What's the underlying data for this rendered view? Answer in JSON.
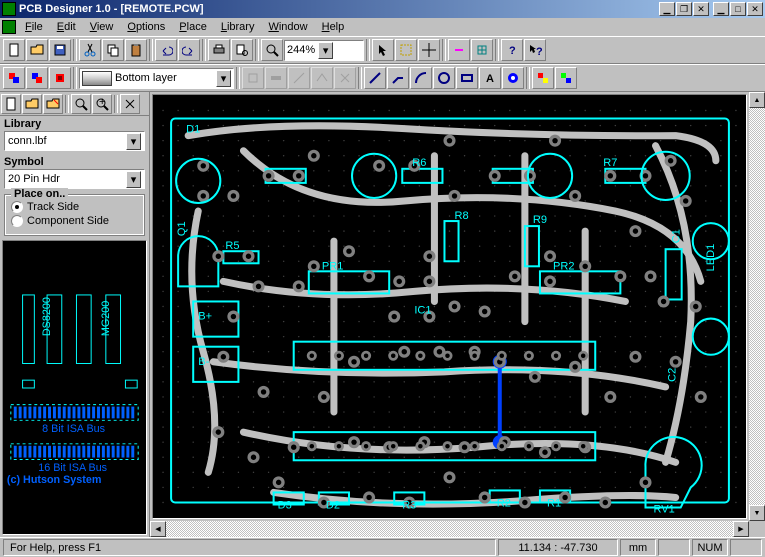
{
  "window": {
    "title": "PCB Designer 1.0 - [REMOTE.PCW]"
  },
  "menus": [
    {
      "label": "File",
      "u": 0
    },
    {
      "label": "Edit",
      "u": 0
    },
    {
      "label": "View",
      "u": 0
    },
    {
      "label": "Options",
      "u": 0
    },
    {
      "label": "Place",
      "u": 0
    },
    {
      "label": "Library",
      "u": 0
    },
    {
      "label": "Window",
      "u": 0
    },
    {
      "label": "Help",
      "u": 0
    }
  ],
  "zoom": "244%",
  "layer_label": "Bottom layer",
  "sidebar": {
    "library_label": "Library",
    "library_value": "conn.lbf",
    "symbol_label": "Symbol",
    "symbol_value": "20 Pin Hdr",
    "placeon_label": "Place on..",
    "radio_track": "Track Side",
    "radio_component": "Component Side",
    "radio_selected": "track"
  },
  "preview": {
    "bus8_label": "8 Bit ISA Bus",
    "bus16_label": "16 Bit ISA Bus",
    "copyright": "(c) Hutson System",
    "line_color": "#00ffff",
    "text_color": "#0060ff"
  },
  "pcb": {
    "bg": "#000000",
    "dot": "#404040",
    "silk": "#c0c0c0",
    "trace": "#00ffff",
    "trace2": "#0040ff",
    "pad_outer": "#808080",
    "pad_inner": "#000000",
    "labels": {
      "D1": "D1",
      "Q1": "Q1",
      "R6": "R6",
      "R7": "R7",
      "R8": "R8",
      "R9": "R9",
      "R5": "R5",
      "PR1": "PR1",
      "PR2": "PR2",
      "IC1": "IC1",
      "U1": "U1",
      "B+": "B+",
      "B-": "B-",
      "D3": "D3",
      "D2": "D2",
      "R3": "R3",
      "R2": "R2",
      "R1": "R1",
      "RV1": "RV1",
      "C1": "C1",
      "C2": "C2",
      "LED1": "LED1"
    }
  },
  "status": {
    "help": "For Help, press F1",
    "coords": "11.134 : -47.730",
    "unit": "mm",
    "num": "NUM"
  },
  "colors": {
    "titlebar_start": "#0a246a",
    "titlebar_end": "#a6caf0",
    "face": "#c0c0c0"
  }
}
